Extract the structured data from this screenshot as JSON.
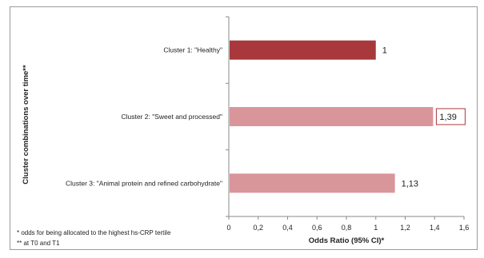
{
  "chart_data": {
    "type": "bar",
    "orientation": "horizontal",
    "categories": [
      "Cluster 1: \"Healthy\"",
      "Cluster 2: \"Sweet and processed\"",
      "Cluster 3: \"Animal protein and refined carbohydrate\""
    ],
    "values": [
      1,
      1.39,
      1.13
    ],
    "value_labels": [
      "1",
      "1,39",
      "1,13"
    ],
    "xlabel": "Odds Ratio (95% CI)*",
    "ylabel": "Cluster combinations over time**",
    "xlim": [
      0,
      1.6
    ],
    "xticks": [
      0,
      0.2,
      0.4,
      0.6,
      0.8,
      1,
      1.2,
      1.4,
      1.6
    ],
    "xtick_labels": [
      "0",
      "0,2",
      "0,4",
      "0,6",
      "0,8",
      "1",
      "1,2",
      "1,4",
      "1,6"
    ],
    "bar_colors": [
      "#a8383b",
      "#d9969a",
      "#d9969a"
    ],
    "highlighted_label_index": 1,
    "grid": false,
    "legend": "none",
    "footnotes": [
      "* odds for being allocated to the highest hs-CRP tertile",
      "** at T0 and T1"
    ]
  }
}
